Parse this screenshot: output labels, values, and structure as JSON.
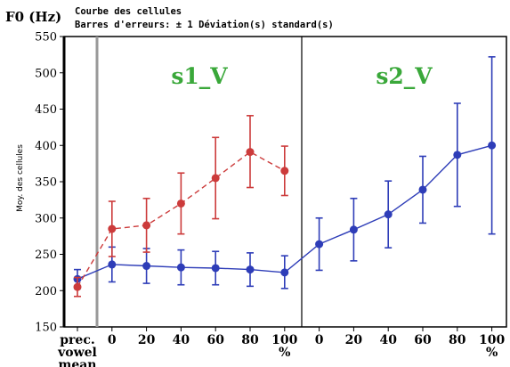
{
  "chart_data": {
    "type": "line",
    "y_unit_label": "F0 (Hz)",
    "title_line1": "Courbe des cellules",
    "title_line2": "Barres d'erreurs: ± 1 Déviation(s) standard(s)",
    "ylabel": "Moy. des cellules",
    "ylim": [
      150,
      550
    ],
    "yticks": [
      150,
      200,
      250,
      300,
      350,
      400,
      450,
      500,
      550
    ],
    "panel_labels": [
      "s1_V",
      "s2_V"
    ],
    "categories": [
      {
        "key": "prec",
        "lines": [
          "prec.",
          "vowel",
          "mean"
        ]
      },
      {
        "key": "s1_0",
        "lines": [
          "0"
        ]
      },
      {
        "key": "s1_20",
        "lines": [
          "20"
        ]
      },
      {
        "key": "s1_40",
        "lines": [
          "40"
        ]
      },
      {
        "key": "s1_60",
        "lines": [
          "60"
        ]
      },
      {
        "key": "s1_80",
        "lines": [
          "80"
        ]
      },
      {
        "key": "s1_100",
        "lines": [
          "100",
          "%"
        ]
      },
      {
        "key": "s2_0",
        "lines": [
          "0"
        ]
      },
      {
        "key": "s2_20",
        "lines": [
          "20"
        ]
      },
      {
        "key": "s2_40",
        "lines": [
          "40"
        ]
      },
      {
        "key": "s2_60",
        "lines": [
          "60"
        ]
      },
      {
        "key": "s2_80",
        "lines": [
          "80"
        ]
      },
      {
        "key": "s2_100",
        "lines": [
          "100",
          "%"
        ]
      }
    ],
    "series": [
      {
        "color": "#2e3db8",
        "dash": false,
        "points": [
          {
            "x": "prec",
            "y": 216,
            "lo": 203,
            "hi": 229
          },
          {
            "x": "s1_0",
            "y": 236,
            "lo": 212,
            "hi": 260
          },
          {
            "x": "s1_20",
            "y": 234,
            "lo": 210,
            "hi": 258
          },
          {
            "x": "s1_40",
            "y": 232,
            "lo": 208,
            "hi": 256
          },
          {
            "x": "s1_60",
            "y": 231,
            "lo": 208,
            "hi": 254
          },
          {
            "x": "s1_80",
            "y": 229,
            "lo": 206,
            "hi": 252
          },
          {
            "x": "s1_100",
            "y": 225,
            "lo": 203,
            "hi": 248
          },
          {
            "x": "s2_0",
            "y": 264,
            "lo": 228,
            "hi": 300
          },
          {
            "x": "s2_20",
            "y": 284,
            "lo": 241,
            "hi": 327
          },
          {
            "x": "s2_40",
            "y": 305,
            "lo": 259,
            "hi": 351
          },
          {
            "x": "s2_60",
            "y": 339,
            "lo": 293,
            "hi": 385
          },
          {
            "x": "s2_80",
            "y": 387,
            "lo": 316,
            "hi": 458
          },
          {
            "x": "s2_100",
            "y": 400,
            "lo": 278,
            "hi": 522
          }
        ]
      },
      {
        "color": "#cc3b3b",
        "dash": true,
        "points": [
          {
            "x": "prec",
            "y": 205,
            "lo": 192,
            "hi": 218
          },
          {
            "x": "s1_0",
            "y": 285,
            "lo": 247,
            "hi": 323
          },
          {
            "x": "s1_20",
            "y": 290,
            "lo": 253,
            "hi": 327
          },
          {
            "x": "s1_40",
            "y": 320,
            "lo": 278,
            "hi": 362
          },
          {
            "x": "s1_60",
            "y": 355,
            "lo": 299,
            "hi": 411
          },
          {
            "x": "s1_80",
            "y": 391,
            "lo": 342,
            "hi": 441
          },
          {
            "x": "s1_100",
            "y": 365,
            "lo": 331,
            "hi": 399
          }
        ]
      }
    ],
    "grid": false,
    "legend": "none"
  }
}
